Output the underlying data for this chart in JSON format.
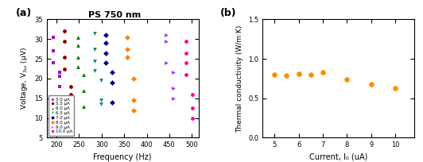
{
  "title": "PS 750 nm",
  "panel_a": {
    "xlabel": "Frequency (Hz)",
    "ylabel": "Voltage, V_{3ω} (μV)",
    "xlim": [
      178,
      515
    ],
    "ylim": [
      5,
      35
    ],
    "xticks": [
      200,
      250,
      300,
      350,
      400,
      450,
      500
    ],
    "yticks": [
      5,
      10,
      15,
      20,
      25,
      30,
      35
    ],
    "series": [
      {
        "label": "5.0 μA",
        "color": "#9900CC",
        "marker": "s",
        "x": [
          193,
          207
        ],
        "y": [
          30.5,
          27.0,
          24.0,
          21.0,
          18.0,
          20.5,
          15.5
        ]
      },
      {
        "label": "5.5 μA",
        "color": "#990000",
        "marker": "o",
        "x": [
          218,
          232
        ],
        "y": [
          32.0,
          29.5,
          25.5,
          22.5,
          18.5,
          16.0,
          15.5
        ]
      },
      {
        "label": "6.0 μA",
        "color": "#008800",
        "marker": "^",
        "x": [
          245,
          258
        ],
        "y": [
          30.5,
          28.5,
          25.5,
          23.0,
          21.0,
          17.0,
          13.0
        ]
      },
      {
        "label": "6.5 μA",
        "color": "#009999",
        "marker": "v",
        "x": [
          285,
          300
        ],
        "y": [
          31.5,
          27.5,
          24.5,
          22.5,
          19.5,
          14.5,
          13.5
        ]
      },
      {
        "label": "7.0 μA",
        "color": "#000099",
        "marker": "D",
        "x": [
          310,
          325
        ],
        "y": [
          31.0,
          29.5,
          26.5,
          24.0,
          21.5,
          19.0,
          14.0
        ]
      },
      {
        "label": "8.0 μA",
        "color": "#FF8000",
        "marker": "D",
        "x": [
          358,
          373
        ],
        "y": [
          30.5,
          27.5,
          25.5,
          20.0,
          14.5,
          12.0
        ]
      },
      {
        "label": "9.0 μA",
        "color": "#9933FF",
        "marker": ">",
        "x": [
          445,
          460
        ],
        "y": [
          31.0,
          29.5,
          24.0,
          21.5,
          17.5,
          15.0
        ]
      },
      {
        "label": "10.0 μA",
        "color": "#FF0099",
        "marker": "o",
        "x": [
          488,
          503
        ],
        "y": [
          29.5,
          26.5,
          24.0,
          21.0,
          16.0,
          12.5,
          10.0
        ]
      }
    ]
  },
  "panel_b": {
    "xlabel": "Current, I₀ (uA)",
    "ylabel": "Thermal conductivity (W/m·K)",
    "xlim": [
      4.5,
      10.8
    ],
    "ylim": [
      0,
      1.5
    ],
    "xticks": [
      5,
      6,
      7,
      8,
      9,
      10
    ],
    "yticks": [
      0,
      0.5,
      1.0,
      1.5
    ],
    "color": "#FF8C00",
    "x": [
      5.0,
      5.5,
      6.0,
      6.5,
      7.0,
      8.0,
      9.0,
      10.0
    ],
    "y": [
      0.8,
      0.79,
      0.81,
      0.8,
      0.83,
      0.74,
      0.68,
      0.63
    ]
  }
}
